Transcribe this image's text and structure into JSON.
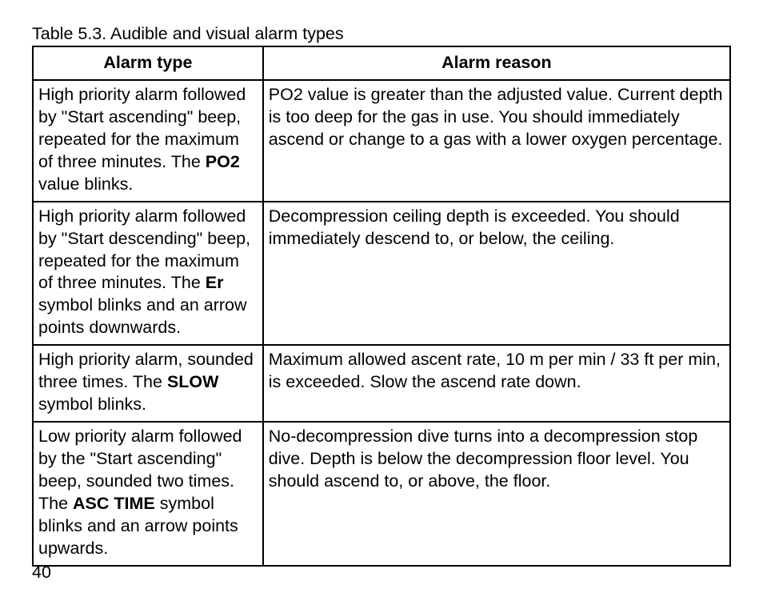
{
  "table": {
    "caption": "Table 5.3. Audible and visual alarm types",
    "columns": [
      "Alarm type",
      "Alarm reason"
    ],
    "column_widths_pct": [
      33,
      67
    ],
    "border_color": "#000000",
    "background_color": "#ffffff",
    "text_color": "#000000",
    "font_size_pt": 16,
    "rows": [
      {
        "type_segments": [
          {
            "text": "High priority alarm followed by \"Start ascending\" beep, repeated for the maximum of three minutes. The ",
            "bold": false
          },
          {
            "text": "PO2",
            "bold": true
          },
          {
            "text": " value blinks.",
            "bold": false
          }
        ],
        "reason_segments": [
          {
            "text": "PO2 value is greater than the adjusted value. Current depth is too deep for the gas in use. You should immediately ascend or change to a gas with a lower oxygen percentage.",
            "bold": false
          }
        ]
      },
      {
        "type_segments": [
          {
            "text": "High priority alarm followed by \"Start descending\" beep, repeated for the maximum of three minutes. The ",
            "bold": false
          },
          {
            "text": "Er",
            "bold": true
          },
          {
            "text": " symbol blinks and an arrow points downwards.",
            "bold": false
          }
        ],
        "reason_segments": [
          {
            "text": "Decompression ceiling depth is exceeded. You should immediately descend to, or below, the ceiling.",
            "bold": false
          }
        ]
      },
      {
        "type_segments": [
          {
            "text": "High priority alarm, sounded three times. The ",
            "bold": false
          },
          {
            "text": "SLOW",
            "bold": true
          },
          {
            "text": " symbol blinks.",
            "bold": false
          }
        ],
        "reason_segments": [
          {
            "text": "Maximum allowed ascent rate, 10 m per min / 33 ft per min, is exceeded. Slow the ascend rate down.",
            "bold": false
          }
        ]
      },
      {
        "type_segments": [
          {
            "text": "Low priority alarm followed by the \"Start ascending\" beep, sounded two times. The ",
            "bold": false
          },
          {
            "text": "ASC TIME",
            "bold": true
          },
          {
            "text": " symbol blinks and an arrow points upwards.",
            "bold": false
          }
        ],
        "reason_segments": [
          {
            "text": "No-decompression dive turns into a decompression stop dive. Depth is below the decompression floor level. You should ascend to, or above, the floor.",
            "bold": false
          }
        ]
      }
    ]
  },
  "page_number": "40"
}
